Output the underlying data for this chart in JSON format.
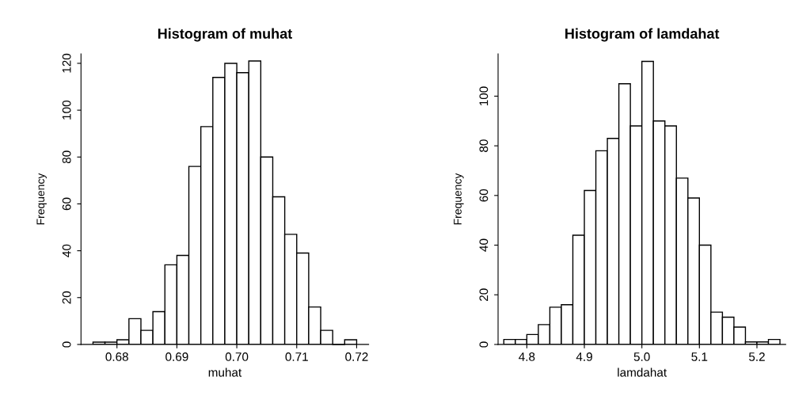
{
  "chart_data": [
    {
      "type": "histogram",
      "title": "Histogram of muhat",
      "xlabel": "muhat",
      "ylabel": "Frequency",
      "bins": [
        0.676,
        0.678,
        0.68,
        0.682,
        0.684,
        0.686,
        0.688,
        0.69,
        0.692,
        0.694,
        0.696,
        0.698,
        0.7,
        0.702,
        0.704,
        0.706,
        0.708,
        0.71,
        0.712,
        0.714,
        0.716,
        0.718,
        0.72
      ],
      "values": [
        1,
        1,
        2,
        11,
        6,
        14,
        34,
        38,
        76,
        93,
        114,
        120,
        116,
        121,
        80,
        63,
        47,
        39,
        16,
        6,
        0,
        2
      ],
      "color": "#ffffff",
      "xlim": [
        0.674,
        0.722
      ],
      "ylim": [
        0,
        124
      ],
      "xticks": [
        {
          "value": 0.68,
          "label": "0.68"
        },
        {
          "value": 0.69,
          "label": "0.69"
        },
        {
          "value": 0.7,
          "label": "0.70"
        },
        {
          "value": 0.71,
          "label": "0.71"
        },
        {
          "value": 0.72,
          "label": "0.72"
        }
      ],
      "yticks": [
        0,
        20,
        40,
        60,
        80,
        100,
        120
      ],
      "grid": false
    },
    {
      "type": "histogram",
      "title": "Histogram of lamdahat",
      "xlabel": "lamdahat",
      "ylabel": "Frequency",
      "bins": [
        4.76,
        4.78,
        4.8,
        4.82,
        4.84,
        4.86,
        4.88,
        4.9,
        4.92,
        4.94,
        4.96,
        4.98,
        5.0,
        5.02,
        5.04,
        5.06,
        5.08,
        5.1,
        5.12,
        5.14,
        5.16,
        5.18,
        5.2,
        5.22,
        5.24
      ],
      "values": [
        2,
        2,
        4,
        8,
        15,
        16,
        44,
        62,
        78,
        83,
        105,
        88,
        114,
        90,
        88,
        67,
        59,
        40,
        13,
        11,
        7,
        1,
        1,
        2
      ],
      "color": "#ffffff",
      "xlim": [
        4.75,
        5.25
      ],
      "ylim": [
        0,
        117
      ],
      "xticks": [
        {
          "value": 4.8,
          "label": "4.8"
        },
        {
          "value": 4.9,
          "label": "4.9"
        },
        {
          "value": 5.0,
          "label": "5.0"
        },
        {
          "value": 5.1,
          "label": "5.1"
        },
        {
          "value": 5.2,
          "label": "5.2"
        }
      ],
      "yticks": [
        0,
        20,
        40,
        60,
        80,
        100
      ],
      "grid": false
    }
  ]
}
